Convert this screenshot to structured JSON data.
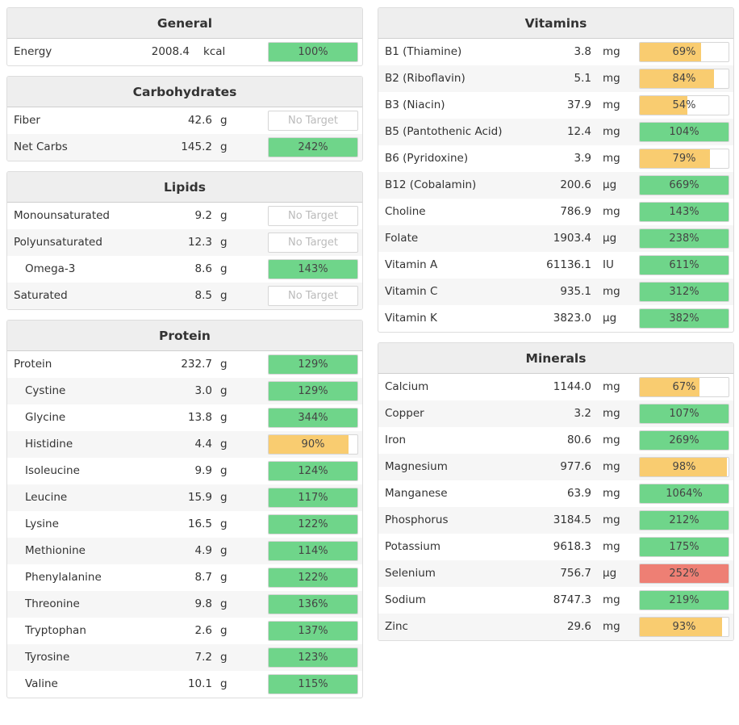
{
  "colors": {
    "ok": "#6fd58a",
    "low": "#f9cc70",
    "high": "#ee7f74"
  },
  "left": [
    {
      "title": "General",
      "cls": "panel-general",
      "rows": [
        {
          "name": "Energy",
          "amount": "2008.4",
          "unit": "kcal",
          "pct": "100%",
          "fill": 1.0,
          "status": "ok"
        }
      ]
    },
    {
      "title": "Carbohydrates",
      "rows": [
        {
          "name": "Fiber",
          "amount": "42.6",
          "unit": "g",
          "pct": "No Target",
          "fill": 0,
          "status": "none"
        },
        {
          "name": "Net Carbs",
          "amount": "145.2",
          "unit": "g",
          "pct": "242%",
          "fill": 1.0,
          "status": "ok"
        }
      ]
    },
    {
      "title": "Lipids",
      "rows": [
        {
          "name": "Monounsaturated",
          "amount": "9.2",
          "unit": "g",
          "pct": "No Target",
          "fill": 0,
          "status": "none"
        },
        {
          "name": "Polyunsaturated",
          "amount": "12.3",
          "unit": "g",
          "pct": "No Target",
          "fill": 0,
          "status": "none"
        },
        {
          "name": "Omega-3",
          "indent": true,
          "amount": "8.6",
          "unit": "g",
          "pct": "143%",
          "fill": 1.0,
          "status": "ok"
        },
        {
          "name": "Saturated",
          "amount": "8.5",
          "unit": "g",
          "pct": "No Target",
          "fill": 0,
          "status": "none"
        }
      ]
    },
    {
      "title": "Protein",
      "rows": [
        {
          "name": "Protein",
          "amount": "232.7",
          "unit": "g",
          "pct": "129%",
          "fill": 1.0,
          "status": "ok"
        },
        {
          "name": "Cystine",
          "indent": true,
          "amount": "3.0",
          "unit": "g",
          "pct": "129%",
          "fill": 1.0,
          "status": "ok"
        },
        {
          "name": "Glycine",
          "indent": true,
          "amount": "13.8",
          "unit": "g",
          "pct": "344%",
          "fill": 1.0,
          "status": "ok"
        },
        {
          "name": "Histidine",
          "indent": true,
          "amount": "4.4",
          "unit": "g",
          "pct": "90%",
          "fill": 0.9,
          "status": "low"
        },
        {
          "name": "Isoleucine",
          "indent": true,
          "amount": "9.9",
          "unit": "g",
          "pct": "124%",
          "fill": 1.0,
          "status": "ok"
        },
        {
          "name": "Leucine",
          "indent": true,
          "amount": "15.9",
          "unit": "g",
          "pct": "117%",
          "fill": 1.0,
          "status": "ok"
        },
        {
          "name": "Lysine",
          "indent": true,
          "amount": "16.5",
          "unit": "g",
          "pct": "122%",
          "fill": 1.0,
          "status": "ok"
        },
        {
          "name": "Methionine",
          "indent": true,
          "amount": "4.9",
          "unit": "g",
          "pct": "114%",
          "fill": 1.0,
          "status": "ok"
        },
        {
          "name": "Phenylalanine",
          "indent": true,
          "amount": "8.7",
          "unit": "g",
          "pct": "122%",
          "fill": 1.0,
          "status": "ok"
        },
        {
          "name": "Threonine",
          "indent": true,
          "amount": "9.8",
          "unit": "g",
          "pct": "136%",
          "fill": 1.0,
          "status": "ok"
        },
        {
          "name": "Tryptophan",
          "indent": true,
          "amount": "2.6",
          "unit": "g",
          "pct": "137%",
          "fill": 1.0,
          "status": "ok"
        },
        {
          "name": "Tyrosine",
          "indent": true,
          "amount": "7.2",
          "unit": "g",
          "pct": "123%",
          "fill": 1.0,
          "status": "ok"
        },
        {
          "name": "Valine",
          "indent": true,
          "amount": "10.1",
          "unit": "g",
          "pct": "115%",
          "fill": 1.0,
          "status": "ok"
        }
      ]
    }
  ],
  "right": [
    {
      "title": "Vitamins",
      "rows": [
        {
          "name": "B1 (Thiamine)",
          "amount": "3.8",
          "unit": "mg",
          "pct": "69%",
          "fill": 0.69,
          "status": "low"
        },
        {
          "name": "B2 (Riboflavin)",
          "amount": "5.1",
          "unit": "mg",
          "pct": "84%",
          "fill": 0.84,
          "status": "low"
        },
        {
          "name": "B3 (Niacin)",
          "amount": "37.9",
          "unit": "mg",
          "pct": "54%",
          "fill": 0.54,
          "status": "low"
        },
        {
          "name": "B5 (Pantothenic Acid)",
          "amount": "12.4",
          "unit": "mg",
          "pct": "104%",
          "fill": 1.0,
          "status": "ok"
        },
        {
          "name": "B6 (Pyridoxine)",
          "amount": "3.9",
          "unit": "mg",
          "pct": "79%",
          "fill": 0.79,
          "status": "low"
        },
        {
          "name": "B12 (Cobalamin)",
          "amount": "200.6",
          "unit": "µg",
          "pct": "669%",
          "fill": 1.0,
          "status": "ok"
        },
        {
          "name": "Choline",
          "amount": "786.9",
          "unit": "mg",
          "pct": "143%",
          "fill": 1.0,
          "status": "ok"
        },
        {
          "name": "Folate",
          "amount": "1903.4",
          "unit": "µg",
          "pct": "238%",
          "fill": 1.0,
          "status": "ok"
        },
        {
          "name": "Vitamin A",
          "amount": "61136.1",
          "unit": "IU",
          "pct": "611%",
          "fill": 1.0,
          "status": "ok"
        },
        {
          "name": "Vitamin C",
          "amount": "935.1",
          "unit": "mg",
          "pct": "312%",
          "fill": 1.0,
          "status": "ok"
        },
        {
          "name": "Vitamin K",
          "amount": "3823.0",
          "unit": "µg",
          "pct": "382%",
          "fill": 1.0,
          "status": "ok"
        }
      ]
    },
    {
      "title": "Minerals",
      "rows": [
        {
          "name": "Calcium",
          "amount": "1144.0",
          "unit": "mg",
          "pct": "67%",
          "fill": 0.67,
          "status": "low"
        },
        {
          "name": "Copper",
          "amount": "3.2",
          "unit": "mg",
          "pct": "107%",
          "fill": 1.0,
          "status": "ok"
        },
        {
          "name": "Iron",
          "amount": "80.6",
          "unit": "mg",
          "pct": "269%",
          "fill": 1.0,
          "status": "ok"
        },
        {
          "name": "Magnesium",
          "amount": "977.6",
          "unit": "mg",
          "pct": "98%",
          "fill": 0.98,
          "status": "low"
        },
        {
          "name": "Manganese",
          "amount": "63.9",
          "unit": "mg",
          "pct": "1064%",
          "fill": 1.0,
          "status": "ok"
        },
        {
          "name": "Phosphorus",
          "amount": "3184.5",
          "unit": "mg",
          "pct": "212%",
          "fill": 1.0,
          "status": "ok"
        },
        {
          "name": "Potassium",
          "amount": "9618.3",
          "unit": "mg",
          "pct": "175%",
          "fill": 1.0,
          "status": "ok"
        },
        {
          "name": "Selenium",
          "amount": "756.7",
          "unit": "µg",
          "pct": "252%",
          "fill": 1.0,
          "status": "high"
        },
        {
          "name": "Sodium",
          "amount": "8747.3",
          "unit": "mg",
          "pct": "219%",
          "fill": 1.0,
          "status": "ok"
        },
        {
          "name": "Zinc",
          "amount": "29.6",
          "unit": "mg",
          "pct": "93%",
          "fill": 0.93,
          "status": "low"
        }
      ]
    }
  ]
}
